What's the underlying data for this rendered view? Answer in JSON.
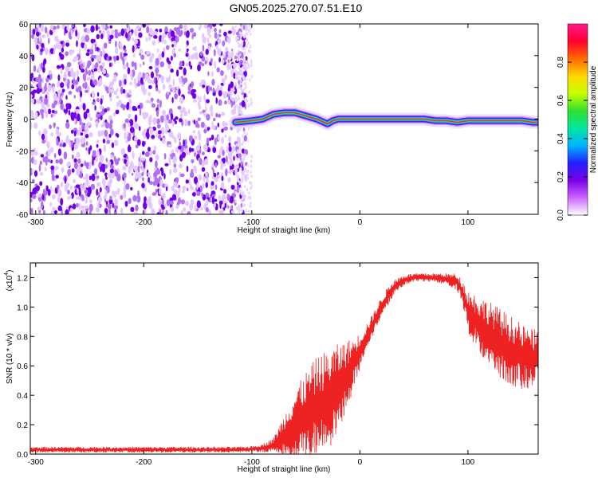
{
  "title": "GN05.2025.270.07.51.E10",
  "chart_data": [
    {
      "type": "heatmap",
      "xlabel": "Height of straight line (km)",
      "ylabel": "Frequency (Hz)",
      "xlim": [
        -305,
        165
      ],
      "ylim": [
        -60,
        60
      ],
      "x_ticks": [
        -300,
        -200,
        -100,
        0,
        100
      ],
      "y_ticks": [
        -60,
        -40,
        -20,
        0,
        20,
        40,
        60
      ],
      "colorbar": {
        "label": "Normalized spectral amplitude",
        "range": [
          0,
          1
        ],
        "ticks": [
          "0.0",
          "0.2",
          "0.4",
          "0.6",
          "0.8"
        ],
        "colors": [
          "#ffffff",
          "#cc66ff",
          "#7a00e6",
          "#2020ff",
          "#00b4ff",
          "#00e6a0",
          "#30e030",
          "#c8ff00",
          "#ffd700",
          "#ff6a00",
          "#ff0030",
          "#ff1a8c"
        ]
      },
      "noise_region_x": [
        -305,
        -115
      ],
      "ridge": {
        "x": [
          -115,
          -100,
          -90,
          -80,
          -70,
          -60,
          -50,
          -40,
          -30,
          -25,
          -20,
          -10,
          0,
          10,
          20,
          30,
          40,
          50,
          60,
          70,
          80,
          90,
          100,
          110,
          120,
          130,
          140,
          150,
          160,
          165
        ],
        "y": [
          -2,
          -1,
          0,
          3,
          4,
          4,
          2,
          0,
          -3,
          -1,
          0,
          0,
          0,
          0,
          0,
          0,
          0,
          0,
          0,
          -1,
          -1,
          -2,
          -1,
          -1,
          -1,
          -1,
          -1,
          -1,
          -2,
          -2
        ]
      }
    },
    {
      "type": "line",
      "xlabel": "Height of straight line (km)",
      "ylabel": "SNR (10 * v/v)",
      "y_multiplier": "(x10",
      "y_multiplier_exp": "4",
      "xlim": [
        -305,
        165
      ],
      "ylim": [
        0,
        1.3
      ],
      "x_ticks": [
        -300,
        -200,
        -100,
        0,
        100
      ],
      "y_ticks": [
        "0.0",
        "0.2",
        "0.4",
        "0.6",
        "0.8",
        "1.0",
        "1.2"
      ],
      "series": [
        {
          "color": "#ee2222",
          "x": [
            -305,
            -280,
            -250,
            -220,
            -200,
            -180,
            -150,
            -130,
            -110,
            -100,
            -90,
            -80,
            -70,
            -60,
            -50,
            -40,
            -30,
            -20,
            -10,
            0,
            10,
            20,
            30,
            40,
            50,
            60,
            70,
            80,
            90,
            95,
            100,
            110,
            120,
            130,
            140,
            150,
            160,
            165
          ],
          "baseline": [
            0.03,
            0.03,
            0.03,
            0.03,
            0.03,
            0.03,
            0.03,
            0.03,
            0.03,
            0.035,
            0.04,
            0.06,
            0.13,
            0.2,
            0.26,
            0.32,
            0.36,
            0.45,
            0.56,
            0.7,
            0.85,
            1.0,
            1.12,
            1.18,
            1.2,
            1.2,
            1.2,
            1.19,
            1.17,
            1.1,
            0.97,
            0.88,
            0.82,
            0.75,
            0.7,
            0.66,
            0.65,
            0.65
          ],
          "amplitude": [
            0.02,
            0.02,
            0.02,
            0.02,
            0.02,
            0.02,
            0.02,
            0.02,
            0.02,
            0.02,
            0.03,
            0.05,
            0.14,
            0.24,
            0.3,
            0.34,
            0.35,
            0.3,
            0.22,
            0.12,
            0.08,
            0.07,
            0.06,
            0.04,
            0.03,
            0.03,
            0.03,
            0.04,
            0.06,
            0.08,
            0.15,
            0.2,
            0.22,
            0.24,
            0.24,
            0.22,
            0.2,
            0.2
          ]
        }
      ]
    }
  ]
}
